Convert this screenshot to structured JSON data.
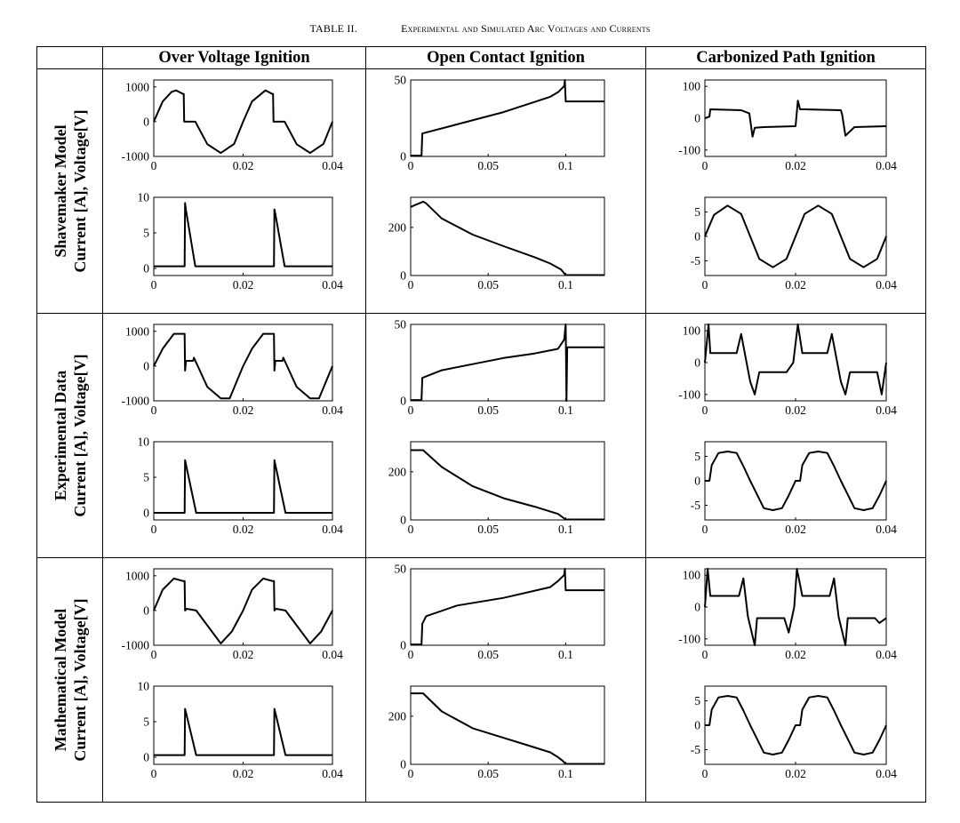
{
  "caption": {
    "number": "TABLE II.",
    "title": "Experimental and Simulated Arc Voltages and Currents"
  },
  "columns": [
    "Over Voltage Ignition",
    "Open Contact Ignition",
    "Carbonized Path Ignition"
  ],
  "rows": [
    {
      "line1": "Shavemaker Model",
      "line2": "Current [A], Voltage[V]"
    },
    {
      "line1": "Experimental Data",
      "line2": "Current [A], Voltage[V]"
    },
    {
      "line1": "Mathematical Model",
      "line2": "Current [A], Voltage[V]"
    }
  ],
  "axes": {
    "over": {
      "voltage": {
        "xlim": [
          0,
          0.04
        ],
        "xticks": [
          0,
          0.02,
          0.04
        ],
        "xtick_labels": [
          "0",
          "0.02",
          "0.04"
        ],
        "ylim": [
          -1000,
          1200
        ],
        "yticks": [
          -1000,
          0,
          1000
        ],
        "ytick_labels": [
          "-1000",
          "0",
          "1000"
        ]
      },
      "current": {
        "xlim": [
          0,
          0.04
        ],
        "xticks": [
          0,
          0.02,
          0.04
        ],
        "xtick_labels": [
          "0",
          "0.02",
          "0.04"
        ],
        "ylim": [
          -1,
          10
        ],
        "yticks": [
          0,
          5,
          10
        ],
        "ytick_labels": [
          "0",
          "5",
          "10"
        ]
      }
    },
    "open": {
      "voltage": {
        "xlim": [
          0,
          0.125
        ],
        "xticks": [
          0,
          0.05,
          0.1
        ],
        "xtick_labels": [
          "0",
          "0.05",
          "0.1"
        ],
        "ylim": [
          0,
          50
        ],
        "yticks": [
          0,
          50
        ],
        "ytick_labels": [
          "0",
          "50"
        ]
      },
      "current": {
        "xlim": [
          0,
          0.125
        ],
        "xticks": [
          0,
          0.05,
          0.1
        ],
        "xtick_labels": [
          "0",
          "0.05",
          "0.1"
        ],
        "ylim": [
          0,
          325
        ],
        "yticks": [
          0,
          200
        ],
        "ytick_labels": [
          "0",
          "200"
        ]
      }
    },
    "carbon": {
      "voltage": {
        "xlim": [
          0,
          0.04
        ],
        "xticks": [
          0,
          0.02,
          0.04
        ],
        "xtick_labels": [
          "0",
          "0.02",
          "0.04"
        ],
        "ylim": [
          -120,
          120
        ],
        "yticks": [
          -100,
          0,
          100
        ],
        "ytick_labels": [
          "-100",
          "0",
          "100"
        ]
      },
      "current": {
        "xlim": [
          0,
          0.04
        ],
        "xticks": [
          0,
          0.02,
          0.04
        ],
        "xtick_labels": [
          "0",
          "0.02",
          "0.04"
        ],
        "ylim": [
          -8,
          8
        ],
        "yticks": [
          -5,
          0,
          5
        ],
        "ytick_labels": [
          "-5",
          "0",
          "5"
        ]
      }
    }
  },
  "chart_data": [
    {
      "type": "line",
      "row": "Shavemaker Model",
      "column": "Over Voltage Ignition",
      "quantity": "Voltage [V]",
      "xlim": [
        0,
        0.04
      ],
      "ylim": [
        -1000,
        1200
      ],
      "x": [
        0,
        0.002,
        0.004,
        0.005,
        0.0065,
        0.0067,
        0.0068,
        0.0093,
        0.012,
        0.015,
        0.018,
        0.02,
        0.022,
        0.025,
        0.0265,
        0.0267,
        0.0268,
        0.0293,
        0.032,
        0.035,
        0.038,
        0.04
      ],
      "y": [
        0,
        580,
        860,
        900,
        800,
        800,
        0,
        0,
        -650,
        -900,
        -640,
        0,
        580,
        900,
        800,
        800,
        0,
        0,
        -650,
        -900,
        -640,
        0
      ]
    },
    {
      "type": "line",
      "row": "Shavemaker Model",
      "column": "Over Voltage Ignition",
      "quantity": "Current [A]",
      "xlim": [
        0,
        0.04
      ],
      "ylim": [
        -1,
        10
      ],
      "x": [
        0,
        0.0069,
        0.007,
        0.0072,
        0.0093,
        0.0095,
        0.0269,
        0.027,
        0.0272,
        0.0293,
        0.0295,
        0.04
      ],
      "y": [
        0.3,
        0.3,
        9.2,
        8.2,
        0.3,
        0.3,
        0.3,
        8.3,
        7.7,
        0.3,
        0.3,
        0.3
      ]
    },
    {
      "type": "line",
      "row": "Shavemaker Model",
      "column": "Open Contact Ignition",
      "quantity": "Voltage [V]",
      "xlim": [
        0,
        0.125
      ],
      "ylim": [
        0,
        50
      ],
      "x": [
        0,
        0.007,
        0.0075,
        0.03,
        0.06,
        0.09,
        0.095,
        0.099,
        0.0995,
        0.1,
        0.125
      ],
      "y": [
        0.5,
        0.5,
        15,
        21,
        29,
        39,
        42,
        46,
        50,
        36,
        36
      ]
    },
    {
      "type": "line",
      "row": "Shavemaker Model",
      "column": "Open Contact Ignition",
      "quantity": "Current [A]",
      "xlim": [
        0,
        0.125
      ],
      "ylim": [
        0,
        325
      ],
      "x": [
        0,
        0.008,
        0.01,
        0.02,
        0.04,
        0.06,
        0.08,
        0.09,
        0.097,
        0.1,
        0.125
      ],
      "y": [
        285,
        307,
        300,
        237,
        170,
        122,
        76,
        50,
        25,
        2,
        2
      ]
    },
    {
      "type": "line",
      "row": "Shavemaker Model",
      "column": "Carbonized Path Ignition",
      "quantity": "Voltage [V]",
      "xlim": [
        0,
        0.04
      ],
      "ylim": [
        -120,
        120
      ],
      "x": [
        0,
        0.001,
        0.0012,
        0.008,
        0.0098,
        0.0105,
        0.011,
        0.013,
        0.02,
        0.0205,
        0.021,
        0.0218,
        0.03,
        0.0303,
        0.031,
        0.033,
        0.04
      ],
      "y": [
        0,
        5,
        28,
        25,
        15,
        -58,
        -30,
        -28,
        -25,
        55,
        28,
        28,
        25,
        10,
        -55,
        -28,
        -25
      ]
    },
    {
      "type": "line",
      "row": "Shavemaker Model",
      "column": "Carbonized Path Ignition",
      "quantity": "Current [A]",
      "xlim": [
        0,
        0.04
      ],
      "ylim": [
        -8,
        8
      ],
      "x": [
        0,
        0.002,
        0.005,
        0.008,
        0.01,
        0.012,
        0.015,
        0.018,
        0.02,
        0.022,
        0.025,
        0.028,
        0.03,
        0.032,
        0.035,
        0.038,
        0.04
      ],
      "y": [
        0,
        4.4,
        6.3,
        4.6,
        0,
        -4.6,
        -6.3,
        -4.6,
        0,
        4.6,
        6.3,
        4.6,
        0,
        -4.6,
        -6.3,
        -4.6,
        0
      ]
    },
    {
      "type": "line",
      "row": "Experimental Data",
      "column": "Over Voltage Ignition",
      "quantity": "Voltage [V]",
      "xlim": [
        0,
        0.04
      ],
      "ylim": [
        -1000,
        1200
      ],
      "x": [
        0,
        0.002,
        0.0045,
        0.0065,
        0.0069,
        0.007,
        0.0072,
        0.0088,
        0.009,
        0.012,
        0.015,
        0.017,
        0.02,
        0.022,
        0.0245,
        0.0265,
        0.0269,
        0.027,
        0.0272,
        0.0288,
        0.029,
        0.032,
        0.035,
        0.037,
        0.04
      ],
      "y": [
        0,
        500,
        930,
        930,
        930,
        -130,
        150,
        150,
        240,
        -600,
        -930,
        -930,
        0,
        500,
        930,
        930,
        930,
        -130,
        150,
        150,
        240,
        -600,
        -930,
        -930,
        0
      ]
    },
    {
      "type": "line",
      "row": "Experimental Data",
      "column": "Over Voltage Ignition",
      "quantity": "Current [A]",
      "xlim": [
        0,
        0.04
      ],
      "ylim": [
        -1,
        10
      ],
      "x": [
        0,
        0.0069,
        0.007,
        0.0072,
        0.0095,
        0.0097,
        0.0269,
        0.027,
        0.0272,
        0.0295,
        0.0297,
        0.04
      ],
      "y": [
        0,
        0,
        7.4,
        6.8,
        0,
        0,
        0,
        7.4,
        6.8,
        0,
        0,
        0
      ]
    },
    {
      "type": "line",
      "row": "Experimental Data",
      "column": "Open Contact Ignition",
      "quantity": "Voltage [V]",
      "xlim": [
        0,
        0.125
      ],
      "ylim": [
        0,
        50
      ],
      "x": [
        0,
        0.007,
        0.0075,
        0.02,
        0.04,
        0.06,
        0.08,
        0.095,
        0.099,
        0.1,
        0.1005,
        0.101,
        0.125
      ],
      "y": [
        0.5,
        0.5,
        15,
        20,
        24,
        28,
        31,
        34,
        40,
        50,
        0,
        35,
        35
      ]
    },
    {
      "type": "line",
      "row": "Experimental Data",
      "column": "Open Contact Ignition",
      "quantity": "Current [A]",
      "xlim": [
        0,
        0.125
      ],
      "ylim": [
        0,
        325
      ],
      "x": [
        0,
        0.008,
        0.02,
        0.04,
        0.06,
        0.08,
        0.095,
        0.1,
        0.125
      ],
      "y": [
        290,
        290,
        220,
        140,
        90,
        55,
        25,
        2,
        2
      ]
    },
    {
      "type": "line",
      "row": "Experimental Data",
      "column": "Carbonized Path Ignition",
      "quantity": "Voltage [V]",
      "xlim": [
        0,
        0.04
      ],
      "ylim": [
        -120,
        120
      ],
      "x": [
        0,
        0.0008,
        0.0012,
        0.002,
        0.007,
        0.008,
        0.01,
        0.011,
        0.012,
        0.018,
        0.0195,
        0.0205,
        0.0215,
        0.027,
        0.028,
        0.03,
        0.031,
        0.032,
        0.038,
        0.039,
        0.04
      ],
      "y": [
        0,
        120,
        30,
        30,
        30,
        90,
        -60,
        -100,
        -30,
        -30,
        0,
        120,
        30,
        30,
        90,
        -60,
        -100,
        -30,
        -30,
        -100,
        0
      ]
    },
    {
      "type": "line",
      "row": "Experimental Data",
      "column": "Carbonized Path Ignition",
      "quantity": "Current [A]",
      "xlim": [
        0,
        0.04
      ],
      "ylim": [
        -8,
        8
      ],
      "x": [
        0,
        0.001,
        0.0015,
        0.003,
        0.005,
        0.007,
        0.0085,
        0.01,
        0.0115,
        0.013,
        0.015,
        0.017,
        0.0185,
        0.02,
        0.021,
        0.0215,
        0.023,
        0.025,
        0.027,
        0.0285,
        0.03,
        0.0315,
        0.033,
        0.035,
        0.037,
        0.0385,
        0.04
      ],
      "y": [
        0,
        0,
        3.2,
        5.7,
        6,
        5.7,
        3,
        0,
        -2.8,
        -5.6,
        -6,
        -5.6,
        -3,
        0,
        0,
        3.2,
        5.7,
        6,
        5.7,
        3,
        0,
        -2.8,
        -5.6,
        -6,
        -5.6,
        -3,
        0
      ]
    },
    {
      "type": "line",
      "row": "Mathematical Model",
      "column": "Over Voltage Ignition",
      "quantity": "Voltage [V]",
      "xlim": [
        0,
        0.04
      ],
      "ylim": [
        -1000,
        1200
      ],
      "x": [
        0,
        0.002,
        0.0045,
        0.0065,
        0.0069,
        0.007,
        0.0074,
        0.0095,
        0.015,
        0.0175,
        0.02,
        0.022,
        0.0245,
        0.0265,
        0.0269,
        0.027,
        0.0274,
        0.0295,
        0.035,
        0.0375,
        0.04
      ],
      "y": [
        0,
        600,
        920,
        850,
        850,
        0,
        50,
        0,
        -950,
        -600,
        0,
        600,
        920,
        850,
        850,
        0,
        50,
        0,
        -950,
        -600,
        0
      ]
    },
    {
      "type": "line",
      "row": "Mathematical Model",
      "column": "Over Voltage Ignition",
      "quantity": "Current [A]",
      "xlim": [
        0,
        0.04
      ],
      "ylim": [
        -1,
        10
      ],
      "x": [
        0,
        0.0069,
        0.007,
        0.0072,
        0.0095,
        0.0097,
        0.0269,
        0.027,
        0.0272,
        0.0295,
        0.0297,
        0.04
      ],
      "y": [
        0.3,
        0.3,
        6.8,
        6.3,
        0.3,
        0.3,
        0.3,
        6.8,
        6.3,
        0.3,
        0.3,
        0.3
      ]
    },
    {
      "type": "line",
      "row": "Mathematical Model",
      "column": "Open Contact Ignition",
      "quantity": "Voltage [V]",
      "xlim": [
        0,
        0.125
      ],
      "ylim": [
        0,
        50
      ],
      "x": [
        0,
        0.007,
        0.0075,
        0.01,
        0.03,
        0.06,
        0.09,
        0.095,
        0.099,
        0.0995,
        0.1,
        0.125
      ],
      "y": [
        0.5,
        0.5,
        14,
        19,
        26,
        31,
        38,
        42,
        46,
        50,
        36,
        36
      ]
    },
    {
      "type": "line",
      "row": "Mathematical Model",
      "column": "Open Contact Ignition",
      "quantity": "Current [A]",
      "xlim": [
        0,
        0.125
      ],
      "ylim": [
        0,
        325
      ],
      "x": [
        0,
        0.008,
        0.02,
        0.04,
        0.06,
        0.08,
        0.09,
        0.095,
        0.098,
        0.1,
        0.125
      ],
      "y": [
        295,
        295,
        220,
        150,
        110,
        70,
        50,
        30,
        15,
        2,
        2
      ]
    },
    {
      "type": "line",
      "row": "Mathematical Model",
      "column": "Carbonized Path Ignition",
      "quantity": "Voltage [V]",
      "xlim": [
        0,
        0.04
      ],
      "ylim": [
        -120,
        120
      ],
      "x": [
        0,
        0.0006,
        0.0012,
        0.002,
        0.0075,
        0.0085,
        0.0095,
        0.011,
        0.0115,
        0.0175,
        0.0185,
        0.0197,
        0.0203,
        0.0215,
        0.0275,
        0.0285,
        0.0295,
        0.031,
        0.0315,
        0.0375,
        0.0385,
        0.04
      ],
      "y": [
        0,
        120,
        35,
        35,
        35,
        90,
        -30,
        -120,
        -35,
        -35,
        -80,
        0,
        120,
        35,
        35,
        90,
        -30,
        -120,
        -35,
        -35,
        -50,
        -35
      ]
    },
    {
      "type": "line",
      "row": "Mathematical Model",
      "column": "Carbonized Path Ignition",
      "quantity": "Current [A]",
      "xlim": [
        0,
        0.04
      ],
      "ylim": [
        -8,
        8
      ],
      "x": [
        0,
        0.001,
        0.0015,
        0.003,
        0.005,
        0.007,
        0.0085,
        0.01,
        0.0115,
        0.013,
        0.015,
        0.017,
        0.0185,
        0.02,
        0.021,
        0.0215,
        0.023,
        0.025,
        0.027,
        0.0285,
        0.03,
        0.0315,
        0.033,
        0.035,
        0.037,
        0.0385,
        0.04
      ],
      "y": [
        0,
        0,
        3.2,
        5.7,
        6,
        5.7,
        3,
        0,
        -2.8,
        -5.6,
        -6,
        -5.6,
        -3,
        0,
        0,
        3.2,
        5.7,
        6,
        5.7,
        3,
        0,
        -2.8,
        -5.6,
        -6,
        -5.6,
        -3,
        0
      ]
    }
  ]
}
